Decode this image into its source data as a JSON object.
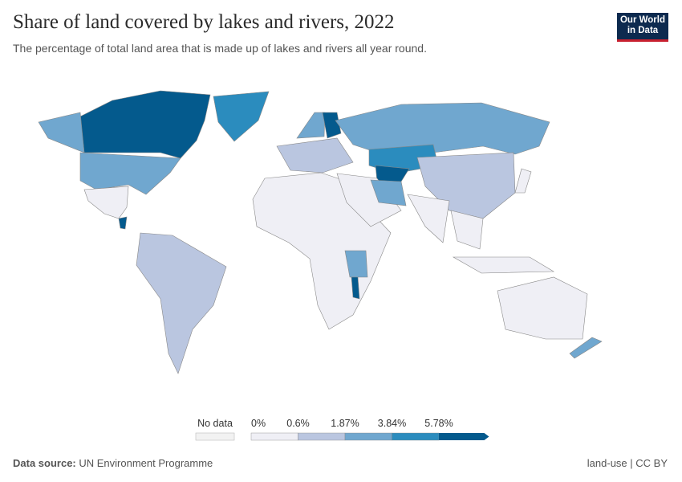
{
  "header": {
    "title": "Share of land covered by lakes and rivers, 2022",
    "subtitle": "The percentage of total land area that is made up of lakes and rivers all year round."
  },
  "logo": {
    "line1": "Our World",
    "line2": "in Data"
  },
  "footer": {
    "source_label": "Data source:",
    "source": "UN Environment Programme",
    "right": "land-use | CC BY"
  },
  "chart_data": {
    "type": "choropleth",
    "title": "Share of land covered by lakes and rivers, 2022",
    "legend": {
      "no_data_label": "No data",
      "ticks": [
        "0%",
        "0.6%",
        "1.87%",
        "3.84%",
        "5.78%"
      ],
      "bins": [
        {
          "range": [
            0,
            0.6
          ],
          "color": "#efeff5"
        },
        {
          "range": [
            0.6,
            1.87
          ],
          "color": "#bac6e0"
        },
        {
          "range": [
            1.87,
            3.84
          ],
          "color": "#70a7cf"
        },
        {
          "range": [
            3.84,
            5.78
          ],
          "color": "#2b8cbe"
        },
        {
          "range": [
            5.78,
            null
          ],
          "color": "#045a8d"
        }
      ]
    },
    "regions": [
      {
        "name": "Canada",
        "bin": 4
      },
      {
        "name": "Alaska (United States)",
        "bin": 2
      },
      {
        "name": "United States",
        "bin": 2
      },
      {
        "name": "Mexico",
        "bin": 0
      },
      {
        "name": "Nicaragua",
        "bin": 4
      },
      {
        "name": "Greenland",
        "bin": 3
      },
      {
        "name": "South America",
        "bin": 1
      },
      {
        "name": "Africa",
        "bin": 0
      },
      {
        "name": "Tanzania",
        "bin": 2
      },
      {
        "name": "Malawi",
        "bin": 4
      },
      {
        "name": "Europe",
        "bin": 1
      },
      {
        "name": "Scandinavia",
        "bin": 2
      },
      {
        "name": "Finland",
        "bin": 4
      },
      {
        "name": "Russia",
        "bin": 2
      },
      {
        "name": "Kazakhstan",
        "bin": 3
      },
      {
        "name": "Turkmenistan/Azerbaijan",
        "bin": 4
      },
      {
        "name": "Middle East",
        "bin": 0
      },
      {
        "name": "Iran",
        "bin": 2
      },
      {
        "name": "China",
        "bin": 1
      },
      {
        "name": "India",
        "bin": 0
      },
      {
        "name": "Southeast Asia",
        "bin": 0
      },
      {
        "name": "Indonesia",
        "bin": 0
      },
      {
        "name": "Australia",
        "bin": 0
      },
      {
        "name": "New Zealand",
        "bin": 2
      },
      {
        "name": "Japan",
        "bin": 0
      }
    ]
  }
}
